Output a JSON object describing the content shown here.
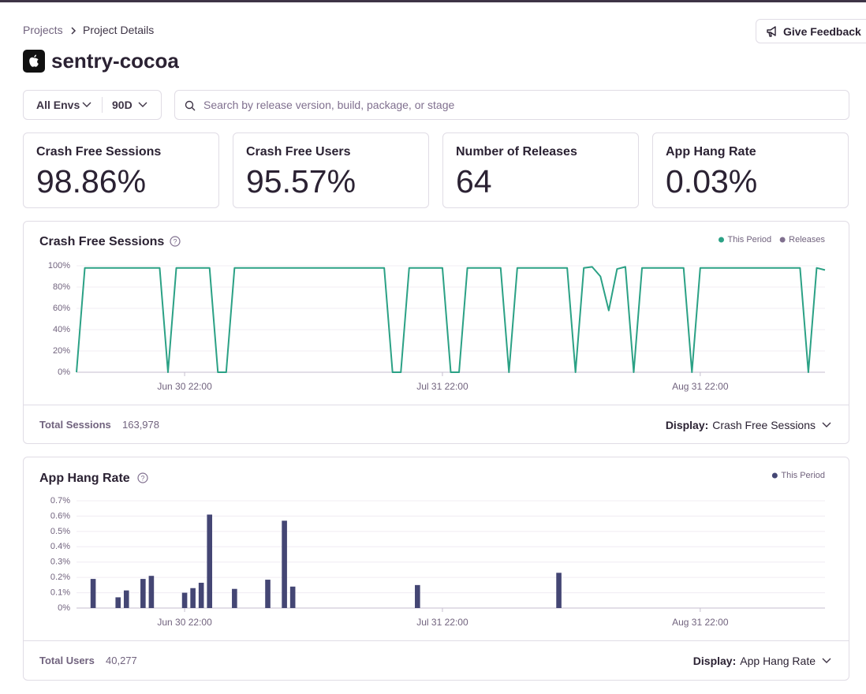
{
  "breadcrumb": [
    "Projects",
    "Project Details"
  ],
  "feedback_button": "Give Feedback",
  "project_name": "sentry-cocoa",
  "filters": {
    "environment": "All Envs",
    "period": "90D",
    "search_placeholder": "Search by release version, build, package, or stage"
  },
  "score_cards": [
    {
      "label": "Crash Free Sessions",
      "value": "98.86%"
    },
    {
      "label": "Crash Free Users",
      "value": "95.57%"
    },
    {
      "label": "Number of Releases",
      "value": "64"
    },
    {
      "label": "App Hang Rate",
      "value": "0.03%"
    }
  ],
  "chart_footers": [
    {
      "total_label": "Total Sessions",
      "total_value": "163,978",
      "display_label": "Display:",
      "display_value": "Crash Free Sessions"
    },
    {
      "total_label": "Total Users",
      "total_value": "40,277",
      "display_label": "Display:",
      "display_value": "App Hang Rate"
    }
  ],
  "chart_data": [
    {
      "type": "line",
      "title": "Crash Free Sessions",
      "legend": "upper right",
      "grid": true,
      "categories": [
        null,
        null,
        null,
        null,
        null,
        null,
        null,
        null,
        null,
        null,
        null,
        null,
        null,
        "Jun 30 22:00",
        null,
        null,
        null,
        null,
        null,
        null,
        null,
        null,
        null,
        null,
        null,
        null,
        null,
        null,
        null,
        null,
        null,
        null,
        null,
        null,
        null,
        null,
        null,
        null,
        null,
        null,
        null,
        null,
        null,
        null,
        "Jul 31 22:00",
        null,
        null,
        null,
        null,
        null,
        null,
        null,
        null,
        null,
        null,
        null,
        null,
        null,
        null,
        null,
        null,
        null,
        null,
        null,
        null,
        null,
        null,
        null,
        null,
        null,
        null,
        null,
        null,
        null,
        null,
        "Aug 31 22:00",
        null,
        null,
        null,
        null,
        null,
        null,
        null,
        null,
        null,
        null,
        null,
        null,
        null,
        null,
        null
      ],
      "series": [
        {
          "name": "This Period",
          "color": "#2ba185",
          "values": [
            0,
            98,
            98,
            98,
            98,
            98,
            98,
            98,
            98,
            98,
            98,
            0,
            98,
            98,
            98,
            98,
            98,
            0,
            0,
            98,
            98,
            98,
            98,
            98,
            98,
            98,
            98,
            98,
            98,
            98,
            98,
            98,
            98,
            98,
            98,
            98,
            98,
            98,
            0,
            0,
            98,
            98,
            98,
            98,
            98,
            0,
            0,
            98,
            98,
            98,
            98,
            98,
            0,
            98,
            98,
            98,
            98,
            98,
            98,
            98,
            0,
            98,
            99,
            90,
            58,
            97,
            99,
            0,
            98,
            98,
            98,
            98,
            98,
            98,
            0,
            98,
            98,
            98,
            98,
            98,
            98,
            98,
            98,
            98,
            98,
            98,
            98,
            98,
            0,
            98,
            96
          ]
        },
        {
          "name": "Releases",
          "color": "#80708f"
        }
      ],
      "ylim": [
        0,
        100
      ],
      "yticks": [
        {
          "value": 0,
          "label": "0%"
        },
        {
          "value": 20,
          "label": "20%"
        },
        {
          "value": 40,
          "label": "40%"
        },
        {
          "value": 60,
          "label": "60%"
        },
        {
          "value": 80,
          "label": "80%"
        },
        {
          "value": 100,
          "label": "100%"
        }
      ]
    },
    {
      "type": "bar",
      "title": "App Hang Rate",
      "legend": "upper right",
      "grid": true,
      "categories": [
        null,
        null,
        null,
        null,
        null,
        null,
        null,
        null,
        null,
        null,
        null,
        null,
        null,
        "Jun 30 22:00",
        null,
        null,
        null,
        null,
        null,
        null,
        null,
        null,
        null,
        null,
        null,
        null,
        null,
        null,
        null,
        null,
        null,
        null,
        null,
        null,
        null,
        null,
        null,
        null,
        null,
        null,
        null,
        null,
        null,
        null,
        "Jul 31 22:00",
        null,
        null,
        null,
        null,
        null,
        null,
        null,
        null,
        null,
        null,
        null,
        null,
        null,
        null,
        null,
        null,
        null,
        null,
        null,
        null,
        null,
        null,
        null,
        null,
        null,
        null,
        null,
        null,
        null,
        null,
        "Aug 31 22:00",
        null,
        null,
        null,
        null,
        null,
        null,
        null,
        null,
        null,
        null,
        null,
        null,
        null,
        null,
        null
      ],
      "series": [
        {
          "name": "This Period",
          "color": "#444674",
          "values": [
            0,
            0,
            0.19,
            0,
            0,
            0.07,
            0.115,
            0,
            0.19,
            0.21,
            0,
            0,
            0,
            0.1,
            0.13,
            0.165,
            0.61,
            0,
            0,
            0.125,
            0,
            0,
            0,
            0.185,
            0,
            0.57,
            0.14,
            0,
            0,
            0,
            0,
            0,
            0,
            0,
            0,
            0,
            0,
            0,
            0,
            0,
            0,
            0.15,
            0,
            0,
            0,
            0,
            0,
            0,
            0,
            0,
            0,
            0,
            0,
            0,
            0,
            0,
            0,
            0,
            0.23,
            0,
            0,
            0,
            0,
            0,
            0,
            0,
            0,
            0,
            0,
            0,
            0,
            0,
            0,
            0,
            0,
            0,
            0,
            0,
            0,
            0,
            0,
            0,
            0,
            0,
            0,
            0,
            0,
            0,
            0,
            0,
            0
          ]
        }
      ],
      "ylim": [
        0,
        0.7
      ],
      "yticks": [
        {
          "value": 0,
          "label": "0%"
        },
        {
          "value": 0.1,
          "label": "0.1%"
        },
        {
          "value": 0.2,
          "label": "0.2%"
        },
        {
          "value": 0.3,
          "label": "0.3%"
        },
        {
          "value": 0.4,
          "label": "0.4%"
        },
        {
          "value": 0.5,
          "label": "0.5%"
        },
        {
          "value": 0.6,
          "label": "0.6%"
        },
        {
          "value": 0.7,
          "label": "0.7%"
        }
      ]
    }
  ]
}
